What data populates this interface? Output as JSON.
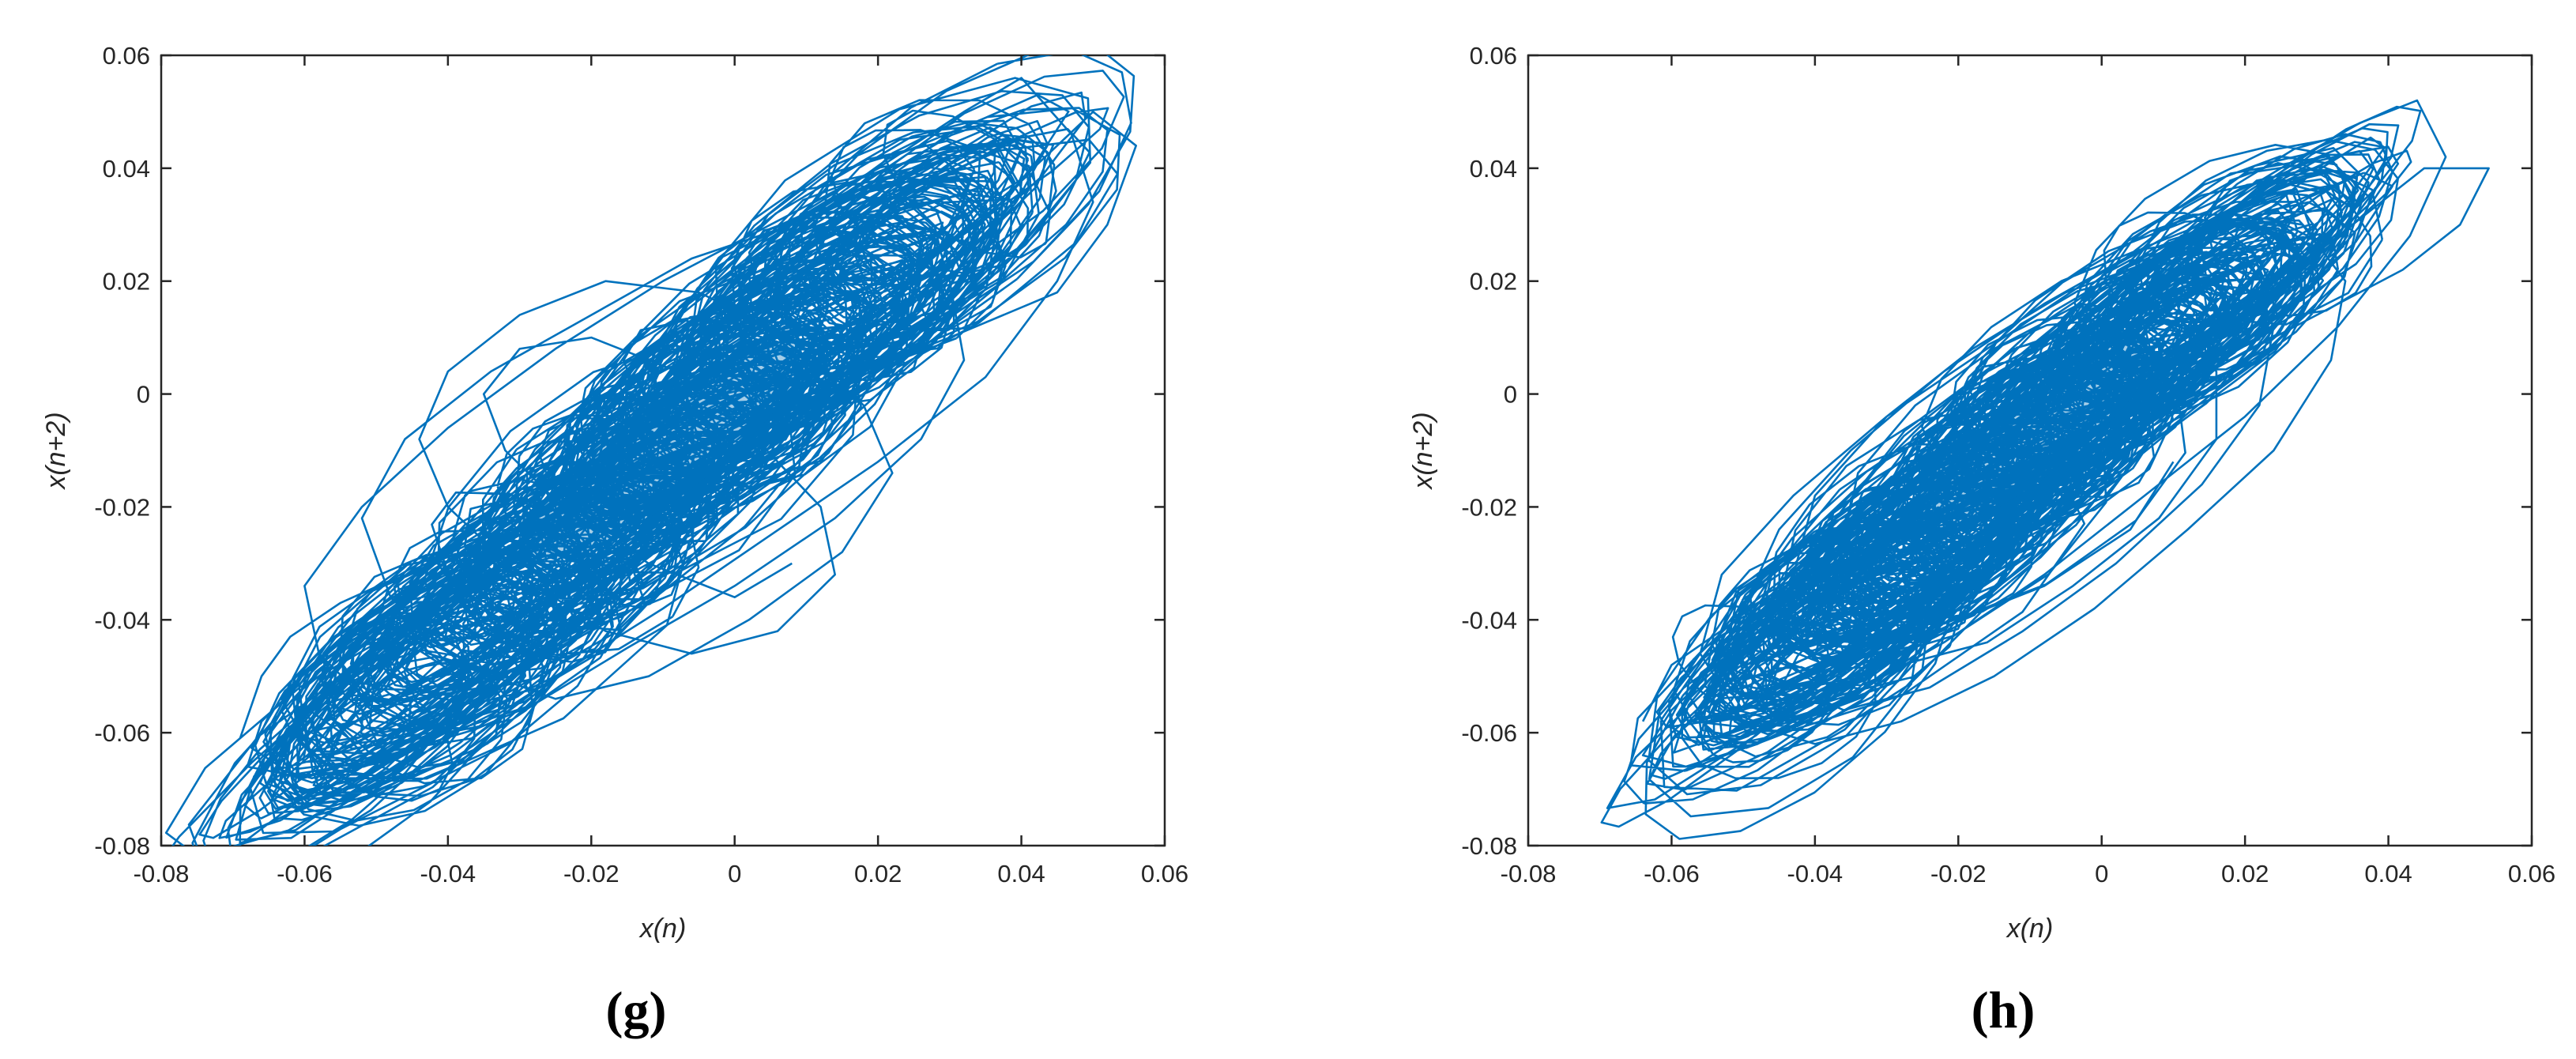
{
  "chart_data": [
    {
      "type": "line",
      "panel_label": "(g)",
      "xlabel": "x(n)",
      "ylabel": "x(n+2)",
      "xlim": [
        -0.08,
        0.06
      ],
      "ylim": [
        -0.08,
        0.06
      ],
      "xticks": [
        "-0.08",
        "-0.06",
        "-0.04",
        "-0.02",
        "0",
        "0.02",
        "0.04",
        "0.06"
      ],
      "yticks": [
        "-0.08",
        "-0.06",
        "-0.04",
        "-0.02",
        "0",
        "0.02",
        "0.04",
        "0.06"
      ],
      "grid": false,
      "color": "#0072BD",
      "series": [
        {
          "description": "dense looping phase-space trajectory",
          "x": [
            -0.069,
            -0.066,
            -0.062,
            -0.055,
            -0.048,
            -0.04,
            -0.03,
            -0.02,
            -0.01,
            0.0,
            0.01,
            0.02,
            0.03,
            0.04,
            0.05,
            0.056,
            0.052,
            0.045,
            0.03,
            0.015,
            0.0,
            -0.015,
            -0.03,
            -0.045,
            -0.058,
            -0.066,
            -0.068,
            -0.06,
            -0.05,
            -0.038,
            -0.025,
            -0.01,
            0.005,
            0.02,
            0.035,
            0.045,
            0.05,
            0.047,
            0.04,
            0.032,
            0.02,
            0.005,
            -0.01,
            -0.025,
            -0.04,
            -0.052,
            -0.06,
            -0.058,
            -0.05,
            -0.04,
            -0.028,
            -0.015,
            0.0,
            0.014,
            0.026,
            0.032,
            0.03,
            0.02,
            0.008,
            -0.006,
            -0.02,
            -0.034,
            -0.046,
            -0.052,
            -0.048,
            -0.038,
            -0.025,
            -0.012,
            0.002,
            0.015,
            0.022,
            0.018,
            0.008,
            -0.005,
            -0.018,
            -0.03,
            -0.04,
            -0.044,
            -0.04,
            -0.03,
            -0.018,
            -0.006,
            0.006,
            0.014,
            0.012,
            0.003,
            -0.008,
            -0.02,
            -0.03,
            -0.035,
            -0.032,
            -0.024,
            -0.012,
            0.0,
            0.008
          ],
          "y": [
            -0.061,
            -0.05,
            -0.043,
            -0.037,
            -0.033,
            -0.027,
            -0.02,
            -0.012,
            -0.005,
            0.003,
            0.012,
            0.02,
            0.03,
            0.038,
            0.05,
            0.044,
            0.03,
            0.018,
            0.01,
            0.003,
            -0.006,
            -0.015,
            -0.025,
            -0.036,
            -0.048,
            -0.058,
            -0.066,
            -0.068,
            -0.064,
            -0.058,
            -0.05,
            -0.038,
            -0.025,
            -0.012,
            0.003,
            0.02,
            0.034,
            0.046,
            0.056,
            0.05,
            0.04,
            0.03,
            0.02,
            0.008,
            -0.006,
            -0.02,
            -0.034,
            -0.046,
            -0.056,
            -0.06,
            -0.055,
            -0.045,
            -0.034,
            -0.022,
            -0.008,
            0.006,
            0.02,
            0.028,
            0.03,
            0.024,
            0.014,
            0.004,
            -0.008,
            -0.022,
            -0.036,
            -0.048,
            -0.054,
            -0.05,
            -0.04,
            -0.028,
            -0.014,
            -0.002,
            0.01,
            0.018,
            0.02,
            0.014,
            0.004,
            -0.008,
            -0.02,
            -0.032,
            -0.042,
            -0.046,
            -0.042,
            -0.032,
            -0.02,
            -0.008,
            0.004,
            0.01,
            0.008,
            0.0,
            -0.01,
            -0.02,
            -0.03,
            -0.036,
            -0.03
          ]
        }
      ]
    },
    {
      "type": "line",
      "panel_label": "(h)",
      "xlabel": "x(n)",
      "ylabel": "x(n+2)",
      "xlim": [
        -0.08,
        0.06
      ],
      "ylim": [
        -0.08,
        0.06
      ],
      "xticks": [
        "-0.08",
        "-0.06",
        "-0.04",
        "-0.02",
        "0",
        "0.02",
        "0.04",
        "0.06"
      ],
      "yticks": [
        "-0.08",
        "-0.06",
        "-0.04",
        "-0.02",
        "0",
        "0.02",
        "0.04",
        "0.06"
      ],
      "grid": false,
      "color": "#0072BD",
      "series": [
        {
          "description": "dense looping phase-space trajectory",
          "x": [
            -0.064,
            -0.06,
            -0.052,
            -0.044,
            -0.035,
            -0.025,
            -0.015,
            -0.005,
            0.005,
            0.015,
            0.025,
            0.035,
            0.045,
            0.054,
            0.05,
            0.042,
            0.03,
            0.018,
            0.005,
            -0.008,
            -0.022,
            -0.036,
            -0.05,
            -0.06,
            -0.064,
            -0.058,
            -0.048,
            -0.036,
            -0.022,
            -0.008,
            0.006,
            0.02,
            0.033,
            0.043,
            0.048,
            0.044,
            0.036,
            0.025,
            0.012,
            -0.002,
            -0.016,
            -0.03,
            -0.043,
            -0.053,
            -0.056,
            -0.05,
            -0.04,
            -0.028,
            -0.015,
            -0.001,
            0.012,
            0.024,
            0.032,
            0.034,
            0.028,
            0.018,
            0.006,
            -0.008,
            -0.022,
            -0.035,
            -0.045,
            -0.05,
            -0.046,
            -0.036,
            -0.024,
            -0.011,
            0.002,
            0.014,
            0.022,
            0.024,
            0.018,
            0.008,
            -0.005,
            -0.018,
            -0.03,
            -0.04,
            -0.043,
            -0.038,
            -0.028,
            -0.016,
            -0.004,
            0.008,
            0.016,
            0.016,
            0.008,
            -0.003,
            -0.015,
            -0.026,
            -0.034,
            -0.036,
            -0.03,
            -0.02,
            -0.008,
            0.004,
            0.01
          ],
          "y": [
            -0.058,
            -0.048,
            -0.041,
            -0.035,
            -0.028,
            -0.02,
            -0.012,
            -0.005,
            0.003,
            0.011,
            0.02,
            0.03,
            0.04,
            0.04,
            0.03,
            0.022,
            0.014,
            0.006,
            -0.003,
            -0.012,
            -0.022,
            -0.032,
            -0.044,
            -0.056,
            -0.064,
            -0.066,
            -0.062,
            -0.054,
            -0.044,
            -0.032,
            -0.018,
            -0.004,
            0.012,
            0.028,
            0.042,
            0.052,
            0.048,
            0.04,
            0.03,
            0.02,
            0.008,
            -0.004,
            -0.018,
            -0.032,
            -0.046,
            -0.058,
            -0.062,
            -0.058,
            -0.05,
            -0.038,
            -0.024,
            -0.01,
            0.006,
            0.02,
            0.03,
            0.032,
            0.026,
            0.016,
            0.004,
            -0.01,
            -0.024,
            -0.038,
            -0.05,
            -0.056,
            -0.052,
            -0.042,
            -0.03,
            -0.016,
            -0.002,
            0.012,
            0.022,
            0.024,
            0.018,
            0.008,
            -0.004,
            -0.018,
            -0.032,
            -0.044,
            -0.048,
            -0.044,
            -0.034,
            -0.022,
            -0.008,
            0.004,
            0.014,
            0.016,
            0.008,
            -0.002,
            -0.014,
            -0.026,
            -0.036,
            -0.04,
            -0.034,
            -0.024,
            -0.012
          ]
        }
      ]
    }
  ]
}
